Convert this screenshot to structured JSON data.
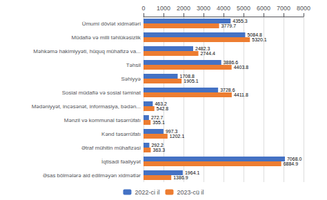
{
  "chart_data": {
    "type": "bar",
    "orientation": "horizontal",
    "categories": [
      "Ümumi dövlət xidmətləri",
      "Müdafiə və milli təhlükəsizlik",
      "Məhkəmə hakimiyyəti, hüquq mühafizə va...",
      "Təhsil",
      "Səhiyyə",
      "Sosial müdafiə və sosial təminat",
      "Mədəniyyət, incəsənət, informasiya, bədən...",
      "Mənzil və kommunal təsərrüfatı",
      "Kənd təsərrüfatı",
      "Ətraf mühitin mühafizəsi",
      "İqtisadi fəaliyyət",
      "Əsas bölmələrə aid edilməyən xidmətlər"
    ],
    "series": [
      {
        "name": "2022-ci il",
        "color": "#4472c4",
        "values": [
          4355.3,
          5084.8,
          2482.3,
          3886.6,
          1708.8,
          3728.6,
          463.2,
          272.7,
          997.3,
          292.2,
          7068.0,
          1964.1
        ],
        "value_labels": [
          "4355.3",
          "5084.8",
          "2482.3",
          "3886.6",
          "1708.8",
          "3728.6",
          "463.2",
          "272.7",
          "997.3",
          "292.2",
          "7068.0",
          "1964.1"
        ]
      },
      {
        "name": "2023-cü il",
        "color": "#ed7d31",
        "values": [
          3779.7,
          5320.1,
          2744.4,
          4403.8,
          1905.1,
          4411.8,
          542.8,
          355.1,
          1202.1,
          363.3,
          6884.9,
          1386.9
        ],
        "value_labels": [
          "3779.7",
          "5320.1",
          "2744.4",
          "4403.8",
          "1905.1",
          "4411.8",
          "542.8",
          "355.1",
          "1202.1",
          "363.3",
          "6884.9",
          "1386.9"
        ]
      }
    ],
    "xlim": [
      0,
      8000
    ],
    "xticks": [
      0,
      1000,
      2000,
      3000,
      4000,
      5000,
      6000,
      7000,
      8000
    ],
    "grid": true,
    "legend": "bottom",
    "data_labels": true
  }
}
